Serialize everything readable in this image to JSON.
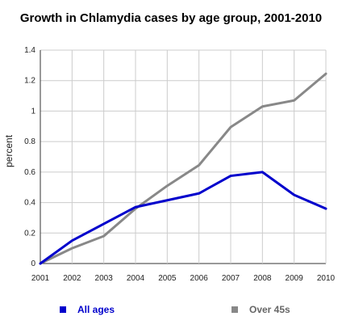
{
  "chart_data": {
    "type": "line",
    "title": "Growth in Chlamydia cases by age group, 2001-2010",
    "xlabel": "",
    "ylabel": "percent",
    "x": [
      "2001",
      "2002",
      "2003",
      "2004",
      "2005",
      "2006",
      "2007",
      "2008",
      "2009",
      "2010"
    ],
    "ylim": [
      0,
      1.4
    ],
    "yticks": [
      "0",
      "0.2",
      "0.4",
      "0.6",
      "0.8",
      "1",
      "1.2",
      "1.4"
    ],
    "grid": true,
    "legend_position": "bottom",
    "series": [
      {
        "name": "All ages",
        "color": "#0000cc",
        "values": [
          0,
          0.15,
          0.26,
          0.37,
          0.415,
          0.46,
          0.575,
          0.6,
          0.45,
          0.36
        ]
      },
      {
        "name": "Over 45s",
        "color": "#888888",
        "values": [
          0,
          0.1,
          0.18,
          0.36,
          0.51,
          0.645,
          0.895,
          1.03,
          1.07,
          1.245
        ]
      }
    ]
  }
}
